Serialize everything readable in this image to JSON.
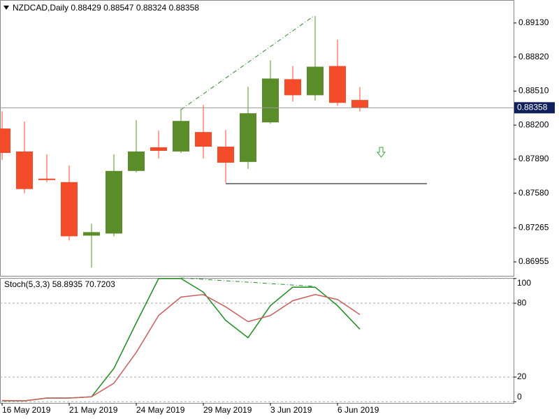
{
  "chart_data": [
    {
      "type": "candlestick",
      "title": "NZDCAD,Daily",
      "categories": [
        "16 May 2019",
        null,
        null,
        "21 May 2019",
        null,
        null,
        "24 May 2019",
        null,
        null,
        "29 May 2019",
        null,
        null,
        "3 Jun 2019",
        null,
        null,
        "6 Jun 2019",
        null
      ],
      "open": [
        0.88169,
        0.8796,
        0.87713,
        0.87681,
        0.87194,
        0.87213,
        0.87783,
        0.87998,
        0.8796,
        0.88137,
        0.88004,
        0.87865,
        0.88225,
        0.88618,
        0.88472,
        0.88738,
        0.88429
      ],
      "high": [
        0.88327,
        0.88232,
        0.87934,
        0.87833,
        0.87302,
        0.87934,
        0.88244,
        0.8815,
        0.88346,
        0.88384,
        0.88156,
        0.88548,
        0.88789,
        0.88738,
        0.89193,
        0.88978,
        0.88547
      ],
      "low": [
        0.87884,
        0.8758,
        0.87681,
        0.8715,
        0.86903,
        0.87188,
        0.8777,
        0.87896,
        0.87947,
        0.87896,
        0.87675,
        0.87802,
        0.88213,
        0.88415,
        0.88422,
        0.88377,
        0.88324
      ],
      "close": [
        0.87947,
        0.87618,
        0.877,
        0.87188,
        0.87226,
        0.87783,
        0.8796,
        0.87966,
        0.88238,
        0.88004,
        0.87858,
        0.88308,
        0.88624,
        0.88472,
        0.88732,
        0.88403,
        0.88358
      ],
      "up_color": "#5b8c2a",
      "down_color": "#f44b2a",
      "ylim": [
        0.86828,
        0.89339
      ],
      "yticks": [
        {
          "value": 0.8913,
          "label": "0.89130"
        },
        {
          "value": 0.8882,
          "label": "0.88820"
        },
        {
          "value": 0.8851,
          "label": "0.88510"
        },
        {
          "value": 0.882,
          "label": "0.88200"
        },
        {
          "value": 0.8789,
          "label": "0.87890"
        },
        {
          "value": 0.8758,
          "label": "0.87580"
        },
        0.87265,
        0.86955
      ]
    },
    {
      "type": "line",
      "title": "Stoch(5,3,3)",
      "series": [
        {
          "color": "#1f8a1f",
          "values": [
            0.7,
            0.7,
            3,
            3,
            4,
            27,
            64,
            100,
            100,
            89,
            66,
            52,
            78,
            93,
            93,
            78,
            58.8935
          ]
        },
        {
          "color": "#c86060",
          "values": [
            1,
            0.7,
            3,
            3,
            4,
            15,
            40,
            70,
            85,
            87,
            77,
            65,
            70,
            82,
            87,
            83,
            70.7203
          ]
        }
      ],
      "ylim": [
        -1,
        100.5
      ],
      "yticks": [
        0,
        20,
        80,
        100
      ],
      "grid": true
    }
  ]
}
